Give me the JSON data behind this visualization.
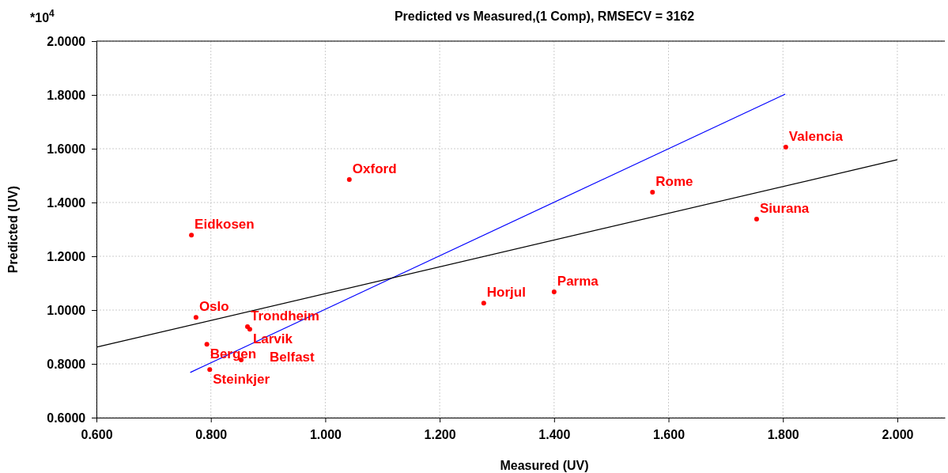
{
  "chart_data": {
    "type": "scatter",
    "title": "Predicted vs Measured,(1 Comp), RMSECV = 3162",
    "xlabel": "Measured (UV)",
    "ylabel": "Predicted (UV)",
    "xlim": [
      0.6,
      2.083
    ],
    "ylim": [
      0.6,
      2.0
    ],
    "xticks": [
      {
        "value": 0.6,
        "label": "0.600"
      },
      {
        "value": 0.8,
        "label": "0.800"
      },
      {
        "value": 1.0,
        "label": "1.000"
      },
      {
        "value": 1.2,
        "label": "1.200"
      },
      {
        "value": 1.4,
        "label": "1.400"
      },
      {
        "value": 1.6,
        "label": "1.600"
      },
      {
        "value": 1.8,
        "label": "1.800"
      },
      {
        "value": 2.0,
        "label": "2.000"
      }
    ],
    "yticks": [
      {
        "value": 0.6,
        "label": "0.6000"
      },
      {
        "value": 0.8,
        "label": "0.8000"
      },
      {
        "value": 1.0,
        "label": "1.0000"
      },
      {
        "value": 1.2,
        "label": "1.2000"
      },
      {
        "value": 1.4,
        "label": "1.4000"
      },
      {
        "value": 1.6,
        "label": "1.6000"
      },
      {
        "value": 1.8,
        "label": "1.8000"
      },
      {
        "value": 2.0,
        "label": "2.0000"
      }
    ],
    "grid": true,
    "legend": false,
    "series": [
      {
        "type": "scatter",
        "color": "#ff0000",
        "marker": "circle",
        "x": [
          0.766,
          0.774,
          0.864,
          0.868,
          0.793,
          0.798,
          0.853,
          1.042,
          1.277,
          1.4,
          1.572,
          1.805,
          1.754
        ],
        "values": [
          1.279,
          0.973,
          0.938,
          0.929,
          0.873,
          0.779,
          0.815,
          1.485,
          1.026,
          1.068,
          1.438,
          1.606,
          1.338
        ]
      },
      {
        "type": "line",
        "color": "#0000ff",
        "marker": "none",
        "x": [
          0.764,
          1.804
        ],
        "values": [
          0.768,
          1.803
        ]
      },
      {
        "type": "line",
        "color": "#000000",
        "marker": "none",
        "x": [
          0.6,
          2.0
        ],
        "values": [
          0.862,
          1.559
        ]
      }
    ],
    "annotations": [
      "*10$^{4}$",
      {
        "text": "Eidkosen",
        "x": 0.766,
        "y": 1.279
      },
      {
        "text": "Oslo",
        "x": 0.774,
        "y": 0.973
      },
      {
        "text": "Trondheim",
        "x": 0.864,
        "y": 0.938
      },
      {
        "text": "Larvik",
        "x": 0.868,
        "y": 0.929
      },
      {
        "text": "Bergen",
        "x": 0.793,
        "y": 0.873
      },
      {
        "text": "Steinkjer",
        "x": 0.798,
        "y": 0.779
      },
      {
        "text": "Belfast",
        "x": 0.853,
        "y": 0.815
      },
      {
        "text": "Oxford",
        "x": 1.042,
        "y": 1.485
      },
      {
        "text": "Horjul",
        "x": 1.277,
        "y": 1.026
      },
      {
        "text": "Parma",
        "x": 1.4,
        "y": 1.068
      },
      {
        "text": "Rome",
        "x": 1.572,
        "y": 1.438
      },
      {
        "text": "Valencia",
        "x": 1.805,
        "y": 1.606
      },
      {
        "text": "Siurana",
        "x": 1.754,
        "y": 1.338
      }
    ]
  }
}
